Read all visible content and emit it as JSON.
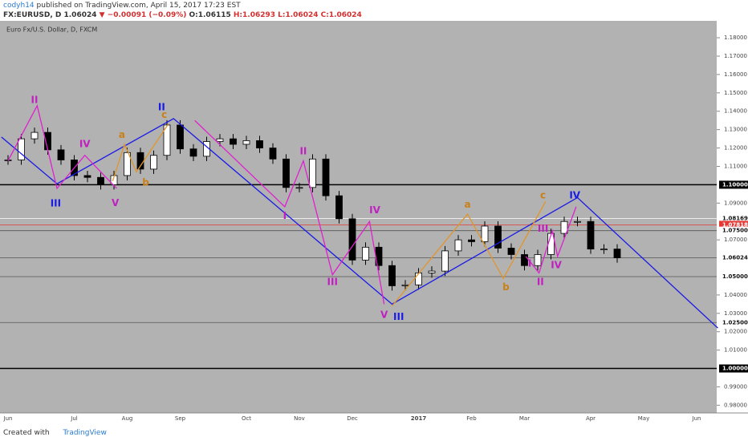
{
  "header": {
    "author": "codyh14",
    "published": "published on TradingView.com, April 15, 2017 17:23 EST",
    "symbol": "FX:EURUSD, D",
    "price": "1.06024",
    "change": "▼ −0.00091 (−0.09%)",
    "ohlc": [
      "O:1.06115",
      "H:1.06293",
      "L:1.06024",
      "C:1.06024"
    ]
  },
  "footer": {
    "created": "Created with",
    "brand": "TradingView"
  },
  "chart_data": {
    "type": "candlestick",
    "title": "Euro Fx/U.S. Dollar, D, FXCM",
    "categories": [
      "Jun",
      null,
      null,
      null,
      null,
      "Jul",
      null,
      null,
      null,
      "Aug",
      null,
      null,
      null,
      "Sep",
      null,
      null,
      null,
      null,
      "Oct",
      null,
      null,
      null,
      "Nov",
      null,
      null,
      null,
      "Dec",
      null,
      null,
      null,
      null,
      "2017",
      null,
      null,
      null,
      "Feb",
      null,
      null,
      null,
      "Mar",
      null,
      null,
      null,
      null,
      "Apr",
      null,
      null,
      null,
      "May",
      null,
      null,
      null,
      "Jun"
    ],
    "values": [
      1.1135,
      1.125,
      1.1285,
      1.119,
      1.1135,
      1.105,
      1.104,
      1.1,
      1.105,
      1.1175,
      1.1085,
      1.116,
      1.1325,
      1.1195,
      1.1155,
      1.1235,
      1.125,
      1.122,
      1.124,
      1.12,
      1.114,
      1.0985,
      1.0985,
      1.114,
      1.094,
      1.0815,
      1.059,
      1.066,
      1.056,
      1.045,
      1.0455,
      1.052,
      1.053,
      1.064,
      1.07,
      1.069,
      1.0775,
      1.0655,
      1.062,
      1.056,
      1.062,
      1.0735,
      1.08,
      1.08,
      1.065,
      1.065,
      1.0602,
      null,
      null,
      null,
      null,
      null,
      null
    ],
    "ylim": [
      0.9758,
      1.1892
    ],
    "yticks": [
      {
        "value": 1.18,
        "label": "1.18000"
      },
      {
        "value": 1.17,
        "label": "1.17000"
      },
      {
        "value": 1.16,
        "label": "1.16000"
      },
      {
        "value": 1.15,
        "label": "1.15000"
      },
      {
        "value": 1.14,
        "label": "1.14000"
      },
      {
        "value": 1.13,
        "label": "1.13000"
      },
      {
        "value": 1.12,
        "label": "1.12000"
      },
      {
        "value": 1.11,
        "label": "1.11000"
      },
      {
        "value": 1.09,
        "label": "1.09000"
      },
      {
        "value": 1.07,
        "label": "1.07000"
      },
      {
        "value": 1.04,
        "label": "1.04000"
      },
      {
        "value": 1.03,
        "label": "1.03000"
      },
      {
        "value": 1.02,
        "label": "1.02000"
      },
      {
        "value": 1.01,
        "label": "1.01000"
      },
      {
        "value": 0.99,
        "label": "0.99000"
      },
      {
        "value": 0.98,
        "label": "0.98000"
      }
    ],
    "levels": [
      {
        "value": 1.1,
        "label": "1.10000",
        "color": "#000000"
      },
      {
        "value": 1.08169,
        "label": "1.08169",
        "color": "#ffffff"
      },
      {
        "value": 1.07818,
        "label": "1.07818",
        "color": "#e53935"
      },
      {
        "value": 1.075,
        "label": "1.07500",
        "color": "#555555"
      },
      {
        "value": 1.06024,
        "label": "1.06024",
        "color": "#555555"
      },
      {
        "value": 1.05,
        "label": "1.05000",
        "color": "#555555"
      },
      {
        "value": 1.025,
        "label": "1.02500",
        "color": "#555555"
      },
      {
        "value": 1.0,
        "label": "1.00000",
        "color": "#000000"
      }
    ],
    "waves": [
      {
        "color": "#1a1ae6",
        "x": [
          -0.5,
          3.7,
          12.5,
          29,
          43,
          53.6
        ],
        "y": [
          1.126,
          1.1005,
          1.136,
          1.035,
          1.093,
          1.022
        ]
      },
      {
        "color": "#e020d0",
        "x": [
          0,
          2.2,
          3.7,
          5.8,
          8.2
        ],
        "y": [
          1.113,
          1.143,
          1.098,
          1.116,
          1.098
        ]
      },
      {
        "color": "#e020d0",
        "x": [
          14.1,
          20.9,
          22.3,
          24.5,
          27.3,
          28.4
        ],
        "y": [
          1.135,
          1.088,
          1.113,
          1.051,
          1.08,
          1.035
        ]
      },
      {
        "color": "#e020d0",
        "x": [
          39.1,
          40.1,
          41.1,
          41.5,
          42.9
        ],
        "y": [
          1.061,
          1.052,
          1.075,
          1.061,
          1.088
        ]
      },
      {
        "color": "#e0962a",
        "x": [
          7.9,
          8.8,
          9.7,
          12.1
        ],
        "y": [
          1.102,
          1.122,
          1.107,
          1.133
        ]
      },
      {
        "color": "#e0962a",
        "x": [
          29,
          34.7,
          37.4,
          40.6
        ],
        "y": [
          1.034,
          1.084,
          1.049,
          1.091
        ]
      }
    ],
    "wave_labels": [
      {
        "text": "II",
        "x": 2.0,
        "y": 1.146,
        "color": "#c020c0"
      },
      {
        "text": "III",
        "x": 3.6,
        "y": 1.0896,
        "color": "#1a1ae6"
      },
      {
        "text": "IV",
        "x": 5.8,
        "y": 1.122,
        "color": "#c020c0"
      },
      {
        "text": "V",
        "x": 8.1,
        "y": 1.09,
        "color": "#c020c0"
      },
      {
        "text": "a",
        "x": 8.6,
        "y": 1.127,
        "color": "#c8801a"
      },
      {
        "text": "b",
        "x": 10.4,
        "y": 1.101,
        "color": "#c8801a"
      },
      {
        "text": "c",
        "x": 11.8,
        "y": 1.138,
        "color": "#c8801a"
      },
      {
        "text": "II",
        "x": 11.6,
        "y": 1.142,
        "color": "#1a1ae6"
      },
      {
        "text": "II",
        "x": 22.3,
        "y": 1.118,
        "color": "#c020c0"
      },
      {
        "text": "I",
        "x": 20.9,
        "y": 1.083,
        "color": "#c020c0"
      },
      {
        "text": "III",
        "x": 24.5,
        "y": 1.047,
        "color": "#c020c0"
      },
      {
        "text": "IV",
        "x": 27.7,
        "y": 1.086,
        "color": "#c020c0"
      },
      {
        "text": "V",
        "x": 28.4,
        "y": 1.029,
        "color": "#c020c0"
      },
      {
        "text": "III",
        "x": 29.5,
        "y": 1.028,
        "color": "#1a1ae6"
      },
      {
        "text": "a",
        "x": 34.7,
        "y": 1.089,
        "color": "#c8801a"
      },
      {
        "text": "b",
        "x": 37.6,
        "y": 1.044,
        "color": "#c8801a"
      },
      {
        "text": "c",
        "x": 40.4,
        "y": 1.094,
        "color": "#c8801a"
      },
      {
        "text": "I",
        "x": 39.4,
        "y": 1.057,
        "color": "#c020c0"
      },
      {
        "text": "II",
        "x": 40.2,
        "y": 1.047,
        "color": "#c020c0"
      },
      {
        "text": "III",
        "x": 40.4,
        "y": 1.076,
        "color": "#c020c0"
      },
      {
        "text": "IV",
        "x": 41.4,
        "y": 1.056,
        "color": "#c020c0"
      },
      {
        "text": "IV",
        "x": 42.8,
        "y": 1.094,
        "color": "#1a1ae6"
      }
    ]
  }
}
